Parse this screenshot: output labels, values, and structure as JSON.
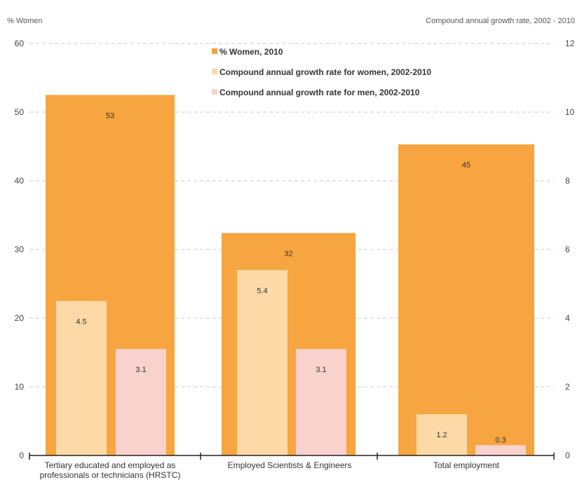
{
  "chart_data": {
    "type": "bar",
    "left_axis_label": "% Women",
    "right_axis_label": "Compound  annual growth rate, 2002 - 2010",
    "left_ylim": [
      0,
      60
    ],
    "left_ticks": [
      "0",
      "10",
      "20",
      "30",
      "40",
      "50",
      "60"
    ],
    "right_ylim": [
      0,
      12
    ],
    "right_ticks": [
      "0",
      "2",
      "4",
      "6",
      "8",
      "10",
      "12"
    ],
    "grid": true,
    "legend_position": "top-center",
    "categories": [
      [
        "Tertiary educated and employed as",
        "professionals or technicians (HRSTC)"
      ],
      [
        "Employed Scientists & Engineers"
      ],
      [
        "Total employment"
      ]
    ],
    "series": [
      {
        "name": "% Women, 2010",
        "axis": "left",
        "color": "#f7a541",
        "values": [
          52.5,
          32.4,
          45.3
        ],
        "labels": [
          "53",
          "32",
          "45"
        ]
      },
      {
        "name": "Compound annual growth rate for women, 2002-2010",
        "axis": "right",
        "color": "#fcd9a6",
        "values": [
          4.5,
          5.4,
          1.2
        ],
        "labels": [
          "4.5",
          "5.4",
          "1.2"
        ]
      },
      {
        "name": "Compound annual growth rate for men, 2002-2010",
        "axis": "right",
        "color": "#f9d2cd",
        "values": [
          3.1,
          3.1,
          0.3
        ],
        "labels": [
          "3.1",
          "3.1",
          "0.3"
        ]
      }
    ]
  }
}
